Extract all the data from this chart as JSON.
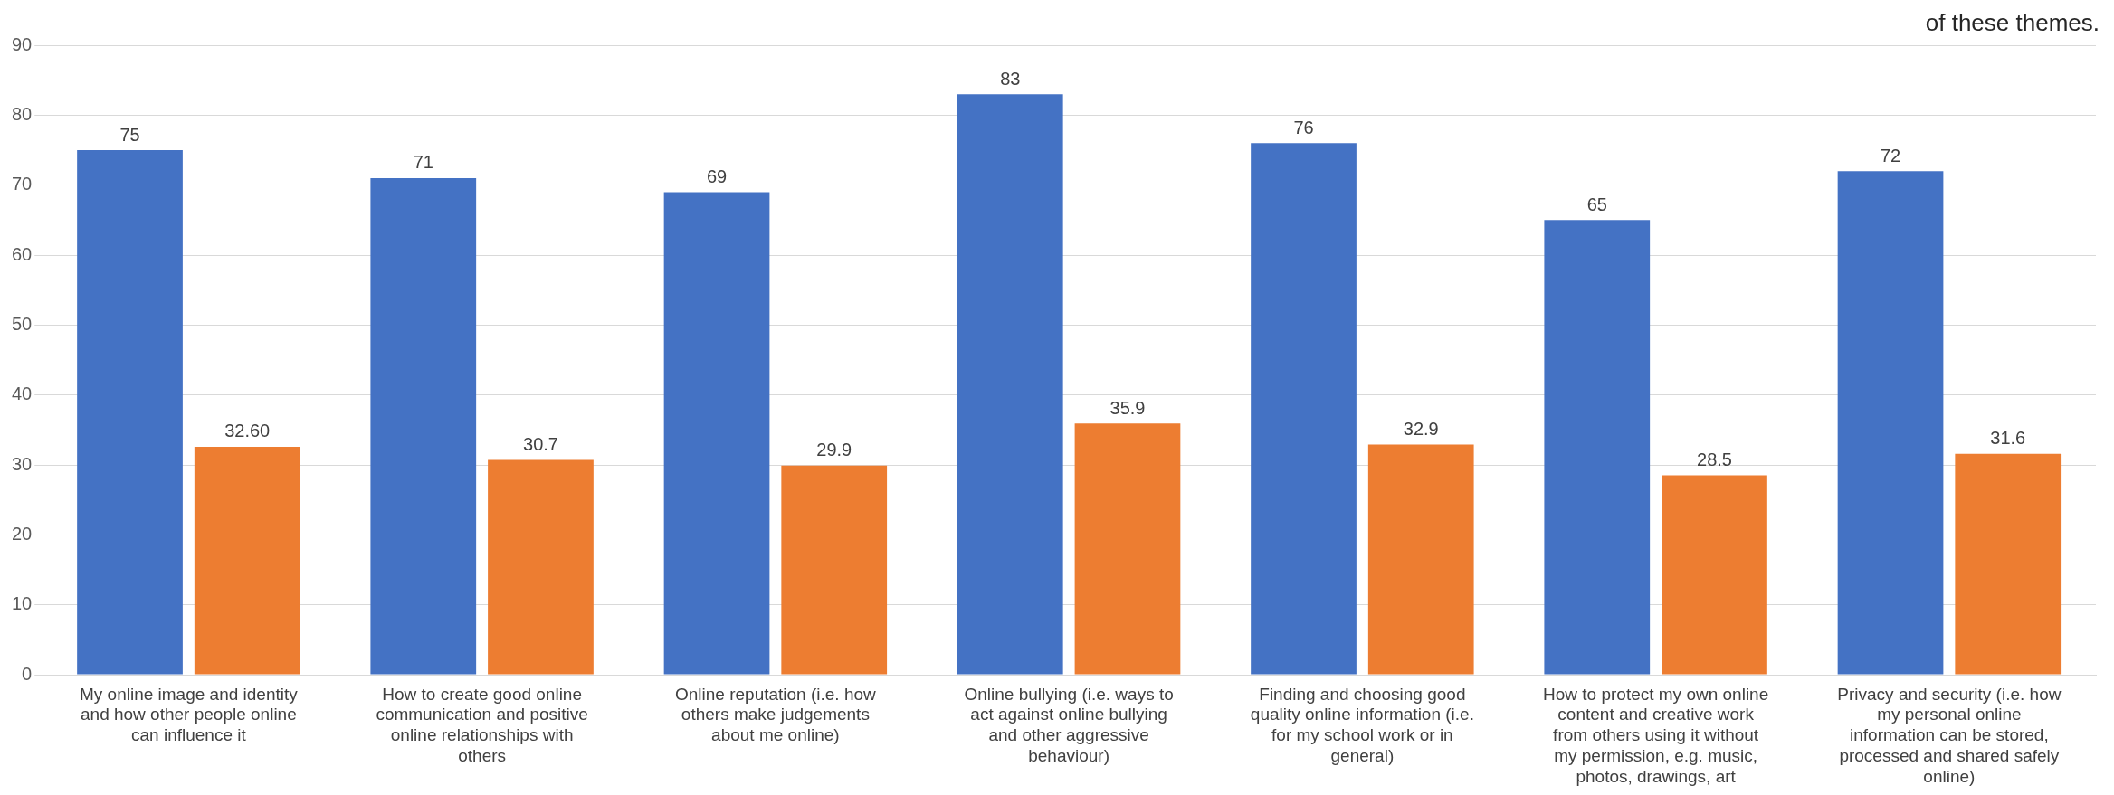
{
  "chart_data": {
    "type": "bar",
    "categories": [
      "My online image and identity and how other people online can influence it",
      "How to create good online communication and positive online relationships with others",
      "Online reputation (i.e. how others make judgements about me online)",
      "Online bullying (i.e. ways to act against online bullying and other aggressive behaviour)",
      "Finding and choosing good quality online information (i.e. for my school work or in general)",
      "How to protect my own online content and creative work from others using it without my permission, e.g. music, photos, drawings, art",
      "Privacy and security (i.e. how my personal online information can be stored, processed and shared safely online)"
    ],
    "series": [
      {
        "color": "#4472c4",
        "values": [
          75,
          71,
          69,
          83,
          76,
          65,
          72
        ],
        "value_labels": [
          "75",
          "71",
          "69",
          "83",
          "76",
          "65",
          "72"
        ]
      },
      {
        "color": "#ed7d31",
        "values": [
          32.6,
          30.7,
          29.9,
          35.9,
          32.9,
          28.5,
          31.6
        ],
        "value_labels": [
          "32.60",
          "30.7",
          "29.9",
          "35.9",
          "32.9",
          "28.5",
          "31.6"
        ]
      }
    ],
    "ylim": [
      0,
      90
    ],
    "yticks": [
      0,
      10,
      20,
      30,
      40,
      50,
      60,
      70,
      80,
      90
    ],
    "grid": "y",
    "legend": false,
    "annotations": [
      "of these themes."
    ]
  }
}
